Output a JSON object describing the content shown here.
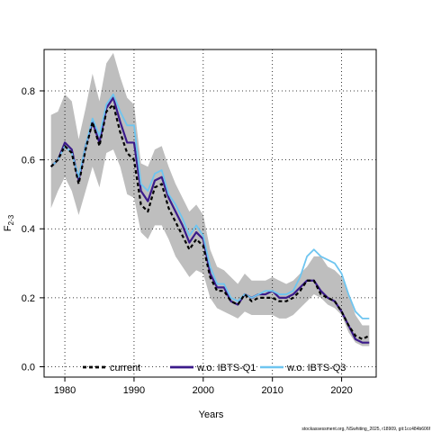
{
  "chart_data": {
    "type": "line",
    "xlabel": "Years",
    "ylabel": "F",
    "ylabel_sub": "2-3",
    "xlim": [
      1977,
      2025
    ],
    "ylim": [
      -0.03,
      0.92
    ],
    "x_ticks": [
      1980,
      1990,
      2000,
      2010,
      2020
    ],
    "y_ticks": [
      0.0,
      0.2,
      0.4,
      0.6,
      0.8
    ],
    "y_tick_labels": [
      "0.0",
      "0.2",
      "0.4",
      "0.6",
      "0.8"
    ],
    "grid": true,
    "legend_position": "bottom",
    "footer": "stockassessment.org, NSwhiting_2025, r18909, git:1cc484b606f",
    "x": [
      1978,
      1979,
      1980,
      1981,
      1982,
      1983,
      1984,
      1985,
      1986,
      1987,
      1988,
      1989,
      1990,
      1991,
      1992,
      1993,
      1994,
      1995,
      1996,
      1997,
      1998,
      1999,
      2000,
      2001,
      2002,
      2003,
      2004,
      2005,
      2006,
      2007,
      2008,
      2009,
      2010,
      2011,
      2012,
      2013,
      2014,
      2015,
      2016,
      2017,
      2018,
      2019,
      2020,
      2021,
      2022,
      2023,
      2024
    ],
    "band": {
      "name": "confidence interval",
      "color": "#bebebe",
      "upper": [
        0.73,
        0.74,
        0.79,
        0.77,
        0.66,
        0.75,
        0.85,
        0.77,
        0.88,
        0.91,
        0.84,
        0.78,
        0.76,
        0.59,
        0.58,
        0.63,
        0.64,
        0.58,
        0.53,
        0.49,
        0.45,
        0.47,
        0.44,
        0.34,
        0.29,
        0.28,
        0.26,
        0.24,
        0.27,
        0.25,
        0.25,
        0.25,
        0.26,
        0.25,
        0.24,
        0.25,
        0.27,
        0.29,
        0.32,
        0.32,
        0.29,
        0.28,
        0.26,
        0.21,
        0.15,
        0.12,
        0.12
      ],
      "lower": [
        0.46,
        0.51,
        0.55,
        0.51,
        0.44,
        0.51,
        0.58,
        0.52,
        0.62,
        0.63,
        0.58,
        0.5,
        0.49,
        0.39,
        0.37,
        0.41,
        0.41,
        0.37,
        0.32,
        0.29,
        0.26,
        0.28,
        0.27,
        0.2,
        0.17,
        0.16,
        0.15,
        0.14,
        0.16,
        0.15,
        0.15,
        0.15,
        0.15,
        0.14,
        0.14,
        0.15,
        0.17,
        0.19,
        0.21,
        0.2,
        0.18,
        0.17,
        0.15,
        0.1,
        0.07,
        0.06,
        0.06
      ]
    },
    "series": [
      {
        "name": "current",
        "color": "#000000",
        "values": [
          0.58,
          0.6,
          0.64,
          0.62,
          0.53,
          0.63,
          0.71,
          0.64,
          0.74,
          0.76,
          0.68,
          0.62,
          0.6,
          0.47,
          0.45,
          0.52,
          0.53,
          0.46,
          0.42,
          0.38,
          0.34,
          0.37,
          0.35,
          0.26,
          0.22,
          0.22,
          0.19,
          0.18,
          0.21,
          0.19,
          0.2,
          0.2,
          0.2,
          0.19,
          0.19,
          0.2,
          0.22,
          0.25,
          0.25,
          0.21,
          0.2,
          0.19,
          0.16,
          0.12,
          0.09,
          0.08,
          0.09
        ]
      },
      {
        "name": "w.o. IBTS-Q1",
        "color": "#3b1a8a",
        "values": [
          0.58,
          0.6,
          0.65,
          0.63,
          0.54,
          0.64,
          0.71,
          0.65,
          0.75,
          0.78,
          0.71,
          0.65,
          0.65,
          0.51,
          0.48,
          0.54,
          0.55,
          0.49,
          0.45,
          0.41,
          0.36,
          0.39,
          0.37,
          0.27,
          0.23,
          0.23,
          0.19,
          0.18,
          0.21,
          0.2,
          0.21,
          0.21,
          0.22,
          0.2,
          0.2,
          0.21,
          0.23,
          0.25,
          0.25,
          0.22,
          0.2,
          0.19,
          0.16,
          0.12,
          0.08,
          0.07,
          0.07
        ]
      },
      {
        "name": "w.o. IBTS-Q3",
        "color": "#6ec5f0",
        "values": [
          0.58,
          0.6,
          0.64,
          0.62,
          0.55,
          0.64,
          0.72,
          0.67,
          0.76,
          0.79,
          0.74,
          0.7,
          0.7,
          0.53,
          0.51,
          0.56,
          0.57,
          0.5,
          0.47,
          0.43,
          0.38,
          0.41,
          0.38,
          0.29,
          0.24,
          0.24,
          0.2,
          0.19,
          0.21,
          0.2,
          0.21,
          0.22,
          0.22,
          0.21,
          0.21,
          0.22,
          0.26,
          0.32,
          0.34,
          0.32,
          0.31,
          0.3,
          0.27,
          0.21,
          0.16,
          0.14,
          0.14
        ]
      }
    ]
  }
}
